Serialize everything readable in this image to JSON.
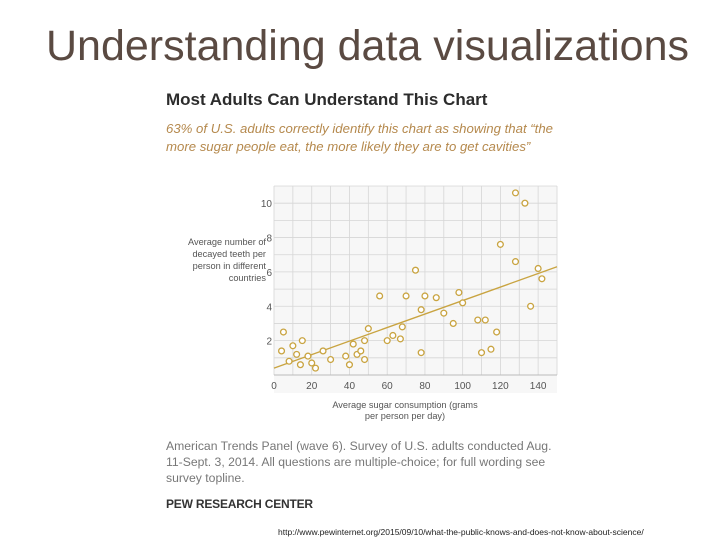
{
  "slide": {
    "title": "Understanding data visualizations",
    "url": "http://www.pewinternet.org/2015/09/10/what-the-public-knows-and-does-not-know-about-science/"
  },
  "figure": {
    "title": "Most Adults Can Understand  This Chart",
    "subtitle": "63% of U.S. adults correctly identify this chart as showing that “the more sugar people eat, the more likely they are to get cavities”",
    "note": "American Trends Panel (wave 6). Survey of U.S. adults conducted Aug. 11-Sept. 3, 2014. All questions are multiple-choice; for full wording see survey topline.",
    "source": "PEW RESEARCH CENTER"
  },
  "chart_data": {
    "type": "scatter",
    "xlabel": "Average sugar consumption (grams per person per day)",
    "ylabel": "Average number of decayed teeth per person in different countries",
    "xlim": [
      0,
      150
    ],
    "ylim": [
      0,
      11
    ],
    "xticks": [
      0,
      20,
      40,
      60,
      80,
      100,
      120,
      140
    ],
    "yticks": [
      2,
      4,
      6,
      8,
      10
    ],
    "grid": true,
    "trendline": {
      "x": [
        0,
        150
      ],
      "y": [
        0.4,
        6.3
      ]
    },
    "colors": {
      "points": "#c9a441",
      "trend": "#c9a441",
      "grid": "#d6d6d6"
    },
    "points": [
      {
        "x": 5,
        "y": 2.5
      },
      {
        "x": 4,
        "y": 1.4
      },
      {
        "x": 8,
        "y": 0.8
      },
      {
        "x": 10,
        "y": 1.7
      },
      {
        "x": 12,
        "y": 1.2
      },
      {
        "x": 14,
        "y": 0.6
      },
      {
        "x": 15,
        "y": 2.0
      },
      {
        "x": 18,
        "y": 1.1
      },
      {
        "x": 20,
        "y": 0.7
      },
      {
        "x": 22,
        "y": 0.4
      },
      {
        "x": 26,
        "y": 1.4
      },
      {
        "x": 30,
        "y": 0.9
      },
      {
        "x": 38,
        "y": 1.1
      },
      {
        "x": 40,
        "y": 0.6
      },
      {
        "x": 42,
        "y": 1.8
      },
      {
        "x": 44,
        "y": 1.2
      },
      {
        "x": 46,
        "y": 1.4
      },
      {
        "x": 48,
        "y": 0.9
      },
      {
        "x": 48,
        "y": 2.0
      },
      {
        "x": 50,
        "y": 2.7
      },
      {
        "x": 60,
        "y": 2.0
      },
      {
        "x": 63,
        "y": 2.3
      },
      {
        "x": 67,
        "y": 2.1
      },
      {
        "x": 68,
        "y": 2.8
      },
      {
        "x": 56,
        "y": 4.6
      },
      {
        "x": 70,
        "y": 4.6
      },
      {
        "x": 75,
        "y": 6.1
      },
      {
        "x": 78,
        "y": 1.3
      },
      {
        "x": 80,
        "y": 4.6
      },
      {
        "x": 78,
        "y": 3.8
      },
      {
        "x": 86,
        "y": 4.5
      },
      {
        "x": 90,
        "y": 3.6
      },
      {
        "x": 95,
        "y": 3.0
      },
      {
        "x": 98,
        "y": 4.8
      },
      {
        "x": 100,
        "y": 4.2
      },
      {
        "x": 108,
        "y": 3.2
      },
      {
        "x": 110,
        "y": 1.3
      },
      {
        "x": 112,
        "y": 3.2
      },
      {
        "x": 115,
        "y": 1.5
      },
      {
        "x": 118,
        "y": 2.5
      },
      {
        "x": 120,
        "y": 7.6
      },
      {
        "x": 128,
        "y": 6.6
      },
      {
        "x": 128,
        "y": 10.6
      },
      {
        "x": 133,
        "y": 10.0
      },
      {
        "x": 136,
        "y": 4.0
      },
      {
        "x": 140,
        "y": 6.2
      },
      {
        "x": 142,
        "y": 5.6
      }
    ]
  }
}
